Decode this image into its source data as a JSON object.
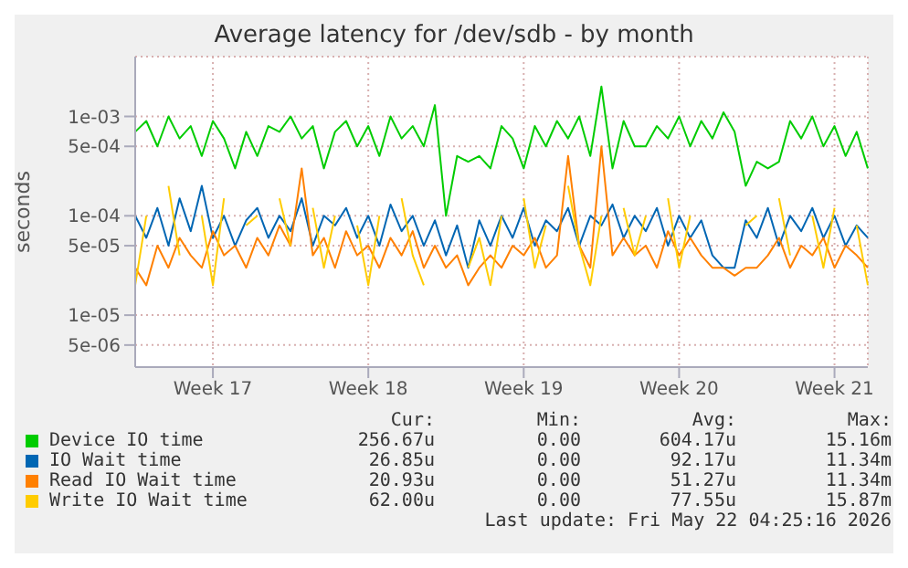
{
  "chart_data": {
    "type": "line",
    "title": "Average latency for /dev/sdb - by month",
    "ylabel": "seconds",
    "log": true,
    "grid": true,
    "legend": "bottom",
    "marker": "none",
    "line_style": "solid",
    "categories": [
      null,
      null,
      null,
      null,
      null,
      null,
      null,
      "Week 17",
      null,
      null,
      null,
      null,
      null,
      null,
      null,
      null,
      null,
      null,
      null,
      null,
      null,
      "Week 18",
      null,
      null,
      null,
      null,
      null,
      null,
      null,
      null,
      null,
      null,
      null,
      null,
      null,
      "Week 19",
      null,
      null,
      null,
      null,
      null,
      null,
      null,
      null,
      null,
      null,
      null,
      null,
      null,
      "Week 20",
      null,
      null,
      null,
      null,
      null,
      null,
      null,
      null,
      null,
      null,
      null,
      null,
      null,
      "Week 21",
      null,
      null,
      null
    ],
    "ylim": [
      3e-06,
      0.004
    ],
    "yticks": [
      {
        "value": 5e-06,
        "label": "5e-06"
      },
      {
        "value": 1e-05,
        "label": "1e-05"
      },
      {
        "value": 5e-05,
        "label": "5e-05"
      },
      {
        "value": 0.0001,
        "label": "1e-04"
      },
      {
        "value": 0.0005,
        "label": "5e-04"
      },
      {
        "value": 0.001,
        "label": "1e-03"
      }
    ],
    "series": [
      {
        "name": "Device IO time",
        "color": "#00cc00",
        "values": [
          0.0007,
          0.0009,
          0.0005,
          0.001,
          0.0006,
          0.0008,
          0.0004,
          0.0009,
          0.0006,
          0.0003,
          0.0007,
          0.0004,
          0.0008,
          0.0007,
          0.001,
          0.0006,
          0.0008,
          0.0003,
          0.0007,
          0.0009,
          0.0005,
          0.0008,
          0.0004,
          0.001,
          0.0006,
          0.0008,
          0.0005,
          0.0013,
          0.0001,
          0.0004,
          0.00035,
          0.0004,
          0.0003,
          0.0008,
          0.0006,
          0.0003,
          0.0008,
          0.0005,
          0.0009,
          0.0006,
          0.001,
          0.0004,
          0.002,
          0.0003,
          0.0009,
          0.0005,
          0.0005,
          0.0008,
          0.0006,
          0.001,
          0.0005,
          0.0009,
          0.0006,
          0.0011,
          0.0007,
          0.0002,
          0.00035,
          0.0003,
          0.00035,
          0.0009,
          0.0006,
          0.001,
          0.0005,
          0.0008,
          0.0004,
          0.0007,
          0.0003
        ]
      },
      {
        "name": "IO Wait time",
        "color": "#0066b3",
        "values": [
          0.0001,
          6e-05,
          0.00012,
          5e-05,
          0.00015,
          7e-05,
          0.0002,
          6e-05,
          0.0001,
          5e-05,
          9e-05,
          0.00012,
          6e-05,
          0.0001,
          7e-05,
          0.00015,
          5e-05,
          0.0001,
          8e-05,
          0.00012,
          6e-05,
          0.0001,
          5e-05,
          0.00013,
          7e-05,
          0.0001,
          5e-05,
          9e-05,
          4e-05,
          8e-05,
          3e-05,
          9e-05,
          5e-05,
          0.0001,
          6e-05,
          0.00012,
          5e-05,
          9e-05,
          7e-05,
          0.00012,
          5e-05,
          0.0001,
          8e-05,
          0.00013,
          6e-05,
          0.0001,
          7e-05,
          0.00012,
          5e-05,
          0.0001,
          6e-05,
          9e-05,
          4e-05,
          3e-05,
          3e-05,
          9e-05,
          6e-05,
          0.00012,
          5e-05,
          0.0001,
          7e-05,
          0.00012,
          6e-05,
          0.0001,
          5e-05,
          8e-05,
          6e-05
        ]
      },
      {
        "name": "Read IO Wait time",
        "color": "#ff8000",
        "values": [
          3e-05,
          2e-05,
          5e-05,
          3e-05,
          6e-05,
          4e-05,
          3e-05,
          7e-05,
          4e-05,
          5e-05,
          3e-05,
          6e-05,
          4e-05,
          8e-05,
          5e-05,
          0.0003,
          4e-05,
          6e-05,
          3e-05,
          7e-05,
          4e-05,
          5e-05,
          3e-05,
          6e-05,
          4e-05,
          7e-05,
          3e-05,
          5e-05,
          3e-05,
          4e-05,
          2e-05,
          3e-05,
          4e-05,
          3e-05,
          5e-05,
          4e-05,
          6e-05,
          3e-05,
          4e-05,
          0.0004,
          5e-05,
          3e-05,
          0.0005,
          4e-05,
          6e-05,
          4e-05,
          5e-05,
          3e-05,
          7e-05,
          4e-05,
          6e-05,
          4e-05,
          3e-05,
          3e-05,
          2.5e-05,
          3e-05,
          3e-05,
          4e-05,
          6e-05,
          3e-05,
          5e-05,
          4e-05,
          6e-05,
          3e-05,
          5e-05,
          4e-05,
          3e-05
        ]
      },
      {
        "name": "Write IO Wait time",
        "color": "#ffcc00",
        "values": [
          2e-05,
          0.0001,
          null,
          0.0002,
          4e-05,
          null,
          0.0001,
          2e-05,
          0.00015,
          null,
          8e-05,
          0.0001,
          null,
          0.00015,
          5e-05,
          null,
          0.00012,
          3e-05,
          0.0001,
          null,
          8e-05,
          2e-05,
          0.0001,
          null,
          0.00015,
          4e-05,
          2e-05,
          null,
          null,
          null,
          3e-05,
          6e-05,
          2e-05,
          0.0001,
          null,
          0.00015,
          3e-05,
          8e-05,
          null,
          0.0002,
          5e-05,
          2e-05,
          0.0001,
          null,
          0.00012,
          4e-05,
          0.0001,
          null,
          0.00015,
          3e-05,
          0.0001,
          null,
          null,
          null,
          null,
          8e-05,
          0.0001,
          null,
          0.00015,
          4e-05,
          null,
          0.0001,
          3e-05,
          0.00012,
          null,
          8e-05,
          2e-05
        ]
      }
    ],
    "annotations": [
      "Cur:",
      "Min:",
      "Avg:",
      "Max:",
      "256.67u",
      "0.00",
      "604.17u",
      "15.16m",
      "26.85u",
      "0.00",
      "92.17u",
      "11.34m",
      "20.93u",
      "0.00",
      "51.27u",
      "11.34m",
      "62.00u",
      "0.00",
      "77.55u",
      "15.87m",
      "Last update: Fri May 22 04:25:16 2026"
    ]
  }
}
